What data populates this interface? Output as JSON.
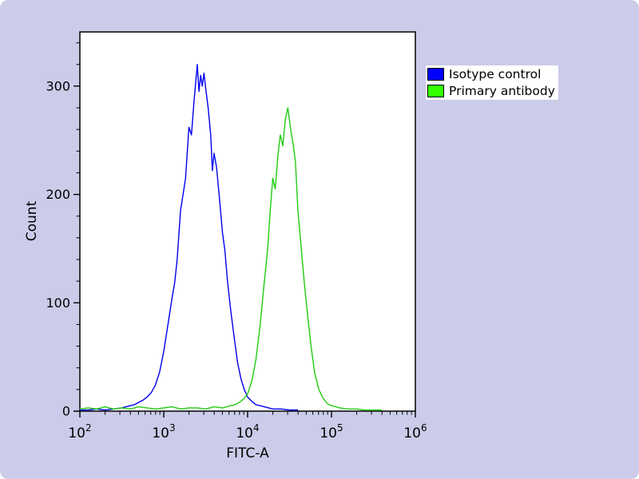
{
  "page": {
    "background": "#cbcce9"
  },
  "chart_data": {
    "type": "line",
    "subtype": "flow-cytometry-histogram",
    "title": "",
    "xlabel": "FITC-A",
    "ylabel": "Count",
    "x_scale": "log10",
    "xlim_log": [
      2,
      6
    ],
    "x_tick_exponents": [
      2,
      3,
      4,
      5,
      6
    ],
    "x_tick_base": "10",
    "ylim": [
      0,
      350
    ],
    "y_ticks": [
      0,
      100,
      200,
      300
    ],
    "y_minor_step": 20,
    "grid": false,
    "legend_position": "top-right",
    "plot_background": "#ffffff",
    "series": [
      {
        "name": "Isotype control",
        "color": "#0000ee",
        "peak_x": 2500,
        "peak_count": 320,
        "points": [
          [
            2.0,
            1
          ],
          [
            2.1,
            1
          ],
          [
            2.2,
            2
          ],
          [
            2.3,
            1
          ],
          [
            2.4,
            2
          ],
          [
            2.5,
            3
          ],
          [
            2.55,
            4
          ],
          [
            2.6,
            5
          ],
          [
            2.65,
            6
          ],
          [
            2.7,
            8
          ],
          [
            2.75,
            10
          ],
          [
            2.8,
            13
          ],
          [
            2.85,
            17
          ],
          [
            2.9,
            24
          ],
          [
            2.95,
            36
          ],
          [
            3.0,
            55
          ],
          [
            3.05,
            80
          ],
          [
            3.1,
            105
          ],
          [
            3.13,
            118
          ],
          [
            3.16,
            140
          ],
          [
            3.2,
            185
          ],
          [
            3.23,
            200
          ],
          [
            3.26,
            215
          ],
          [
            3.3,
            262
          ],
          [
            3.33,
            255
          ],
          [
            3.36,
            285
          ],
          [
            3.4,
            320
          ],
          [
            3.42,
            295
          ],
          [
            3.44,
            310
          ],
          [
            3.46,
            300
          ],
          [
            3.48,
            312
          ],
          [
            3.5,
            298
          ],
          [
            3.53,
            280
          ],
          [
            3.56,
            255
          ],
          [
            3.58,
            222
          ],
          [
            3.6,
            238
          ],
          [
            3.63,
            225
          ],
          [
            3.66,
            200
          ],
          [
            3.7,
            165
          ],
          [
            3.73,
            148
          ],
          [
            3.76,
            120
          ],
          [
            3.8,
            92
          ],
          [
            3.84,
            68
          ],
          [
            3.88,
            45
          ],
          [
            3.92,
            30
          ],
          [
            3.96,
            20
          ],
          [
            4.0,
            13
          ],
          [
            4.05,
            9
          ],
          [
            4.1,
            6
          ],
          [
            4.15,
            5
          ],
          [
            4.2,
            4
          ],
          [
            4.25,
            3
          ],
          [
            4.3,
            2
          ],
          [
            4.4,
            2
          ],
          [
            4.5,
            1
          ],
          [
            4.6,
            1
          ]
        ]
      },
      {
        "name": "Primary antibody",
        "color": "#22cc11",
        "peak_x": 28000,
        "peak_count": 280,
        "points": [
          [
            2.0,
            2
          ],
          [
            2.1,
            3
          ],
          [
            2.2,
            2
          ],
          [
            2.3,
            4
          ],
          [
            2.4,
            2
          ],
          [
            2.5,
            3
          ],
          [
            2.6,
            2
          ],
          [
            2.7,
            4
          ],
          [
            2.8,
            3
          ],
          [
            2.9,
            2
          ],
          [
            3.0,
            3
          ],
          [
            3.1,
            4
          ],
          [
            3.2,
            2
          ],
          [
            3.3,
            3
          ],
          [
            3.4,
            3
          ],
          [
            3.5,
            2
          ],
          [
            3.6,
            4
          ],
          [
            3.7,
            3
          ],
          [
            3.8,
            5
          ],
          [
            3.85,
            6
          ],
          [
            3.9,
            8
          ],
          [
            3.95,
            11
          ],
          [
            4.0,
            16
          ],
          [
            4.05,
            28
          ],
          [
            4.1,
            48
          ],
          [
            4.15,
            80
          ],
          [
            4.2,
            120
          ],
          [
            4.24,
            150
          ],
          [
            4.27,
            185
          ],
          [
            4.3,
            215
          ],
          [
            4.33,
            205
          ],
          [
            4.36,
            235
          ],
          [
            4.39,
            255
          ],
          [
            4.42,
            245
          ],
          [
            4.45,
            270
          ],
          [
            4.48,
            280
          ],
          [
            4.51,
            262
          ],
          [
            4.54,
            248
          ],
          [
            4.57,
            230
          ],
          [
            4.6,
            185
          ],
          [
            4.64,
            150
          ],
          [
            4.68,
            115
          ],
          [
            4.72,
            85
          ],
          [
            4.76,
            58
          ],
          [
            4.8,
            35
          ],
          [
            4.85,
            20
          ],
          [
            4.9,
            12
          ],
          [
            4.95,
            7
          ],
          [
            5.0,
            5
          ],
          [
            5.1,
            3
          ],
          [
            5.2,
            2
          ],
          [
            5.3,
            2
          ],
          [
            5.4,
            1
          ],
          [
            5.5,
            1
          ],
          [
            5.6,
            1
          ]
        ]
      }
    ]
  },
  "legend": {
    "items": [
      {
        "label": "Isotype control",
        "swatch_color": "#0000ff"
      },
      {
        "label": "Primary antibody",
        "swatch_color": "#33ff00"
      }
    ]
  }
}
